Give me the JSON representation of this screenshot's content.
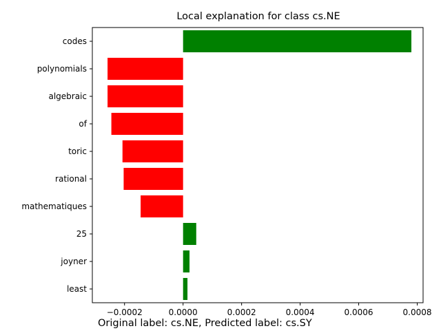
{
  "chart_data": {
    "type": "bar",
    "orientation": "horizontal",
    "title": "Local explanation for class cs.NE",
    "caption": "Original label: cs.NE, Predicted label: cs.SY",
    "xlabel": "",
    "ylabel": "",
    "xlim": [
      -0.00031,
      0.00082
    ],
    "xticks": [
      -0.0002,
      0,
      0.0002,
      0.0004,
      0.0006,
      0.0008
    ],
    "xtick_labels": [
      "−0.0002",
      "0.0000",
      "0.0002",
      "0.0004",
      "0.0006",
      "0.0008"
    ],
    "categories": [
      "codes",
      "polynomials",
      "algebraic",
      "of",
      "toric",
      "rational",
      "mathematiques",
      "25",
      "joyner",
      "least"
    ],
    "values": [
      0.00078,
      -0.000258,
      -0.000258,
      -0.000245,
      -0.000207,
      -0.000203,
      -0.000145,
      4.5e-05,
      2.2e-05,
      1.5e-05
    ],
    "positive_color": "#008000",
    "negative_color": "#ff0000",
    "grid": false,
    "legend": "none"
  }
}
